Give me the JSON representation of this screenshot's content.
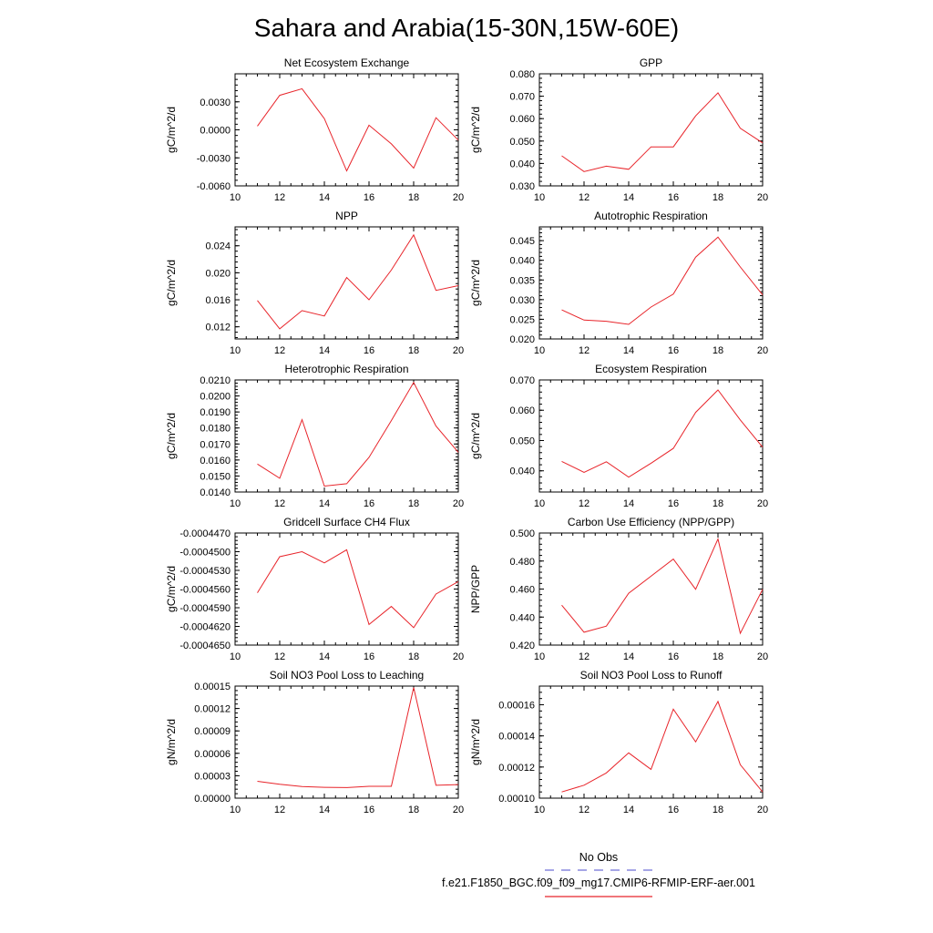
{
  "figure": {
    "title": "Sahara and Arabia(15-30N,15W-60E)",
    "legend": {
      "obs_label": "No Obs",
      "obs_color": "#6f6fd8",
      "case_label": "f.e21.F1850_BGC.f09_f09_mg17.CMIP6-RFMIP-ERF-aer.001",
      "case_color": "#e8242a"
    }
  },
  "chart_data": [
    {
      "type": "line",
      "title": "Net Ecosystem Exchange",
      "ylabel": "gC/m^2/d",
      "xlim": [
        10,
        20
      ],
      "ylim": [
        -0.006,
        0.006
      ],
      "x_ticks": [
        "10",
        "12",
        "14",
        "16",
        "18",
        "20"
      ],
      "y_ticks": [
        {
          "v": -0.006,
          "l": "-0.0060"
        },
        {
          "v": -0.003,
          "l": "-0.0030"
        },
        {
          "v": 0,
          "l": "0.0000"
        },
        {
          "v": 0.003,
          "l": "0.0030"
        }
      ],
      "y_minor": 0.0006,
      "series": [
        {
          "x": [
            11,
            12,
            13,
            14,
            15,
            16,
            17,
            18,
            19,
            20
          ],
          "values": [
            0.0004,
            0.0037,
            0.0044,
            0.0012,
            -0.0044,
            0.0005,
            -0.0015,
            -0.0041,
            0.0013,
            -0.0011
          ]
        }
      ]
    },
    {
      "type": "line",
      "title": "GPP",
      "ylabel": "gC/m^2/d",
      "xlim": [
        10,
        20
      ],
      "ylim": [
        0.03,
        0.08
      ],
      "x_ticks": [
        "10",
        "12",
        "14",
        "16",
        "18",
        "20"
      ],
      "y_ticks": [
        {
          "v": 0.03,
          "l": "0.030"
        },
        {
          "v": 0.04,
          "l": "0.040"
        },
        {
          "v": 0.05,
          "l": "0.050"
        },
        {
          "v": 0.06,
          "l": "0.060"
        },
        {
          "v": 0.07,
          "l": "0.070"
        },
        {
          "v": 0.08,
          "l": "0.080"
        }
      ],
      "y_minor": 0.002,
      "series": [
        {
          "x": [
            11,
            12,
            13,
            14,
            15,
            16,
            17,
            18,
            19,
            20
          ],
          "values": [
            0.0434,
            0.0364,
            0.0388,
            0.0374,
            0.0474,
            0.0474,
            0.0612,
            0.0715,
            0.0557,
            0.0492
          ]
        }
      ]
    },
    {
      "type": "line",
      "title": "NPP",
      "ylabel": "gC/m^2/d",
      "xlim": [
        10,
        20
      ],
      "ylim": [
        0.0102,
        0.0268
      ],
      "x_ticks": [
        "10",
        "12",
        "14",
        "16",
        "18",
        "20"
      ],
      "y_ticks": [
        {
          "v": 0.012,
          "l": "0.012"
        },
        {
          "v": 0.016,
          "l": "0.016"
        },
        {
          "v": 0.02,
          "l": "0.020"
        },
        {
          "v": 0.024,
          "l": "0.024"
        }
      ],
      "y_minor": 0.0008,
      "series": [
        {
          "x": [
            11,
            12,
            13,
            14,
            15,
            16,
            17,
            18,
            19,
            20
          ],
          "values": [
            0.0159,
            0.0117,
            0.0144,
            0.0136,
            0.0193,
            0.016,
            0.0204,
            0.0256,
            0.0174,
            0.0181
          ]
        }
      ]
    },
    {
      "type": "line",
      "title": "Autotrophic Respiration",
      "ylabel": "gC/m^2/d",
      "xlim": [
        10,
        20
      ],
      "ylim": [
        0.02,
        0.0485
      ],
      "x_ticks": [
        "10",
        "12",
        "14",
        "16",
        "18",
        "20"
      ],
      "y_ticks": [
        {
          "v": 0.02,
          "l": "0.020"
        },
        {
          "v": 0.025,
          "l": "0.025"
        },
        {
          "v": 0.03,
          "l": "0.030"
        },
        {
          "v": 0.035,
          "l": "0.035"
        },
        {
          "v": 0.04,
          "l": "0.040"
        },
        {
          "v": 0.045,
          "l": "0.045"
        }
      ],
      "y_minor": 0.001,
      "series": [
        {
          "x": [
            11,
            12,
            13,
            14,
            15,
            16,
            17,
            18,
            19,
            20
          ],
          "values": [
            0.0274,
            0.0248,
            0.0245,
            0.0237,
            0.0281,
            0.0314,
            0.0408,
            0.0459,
            0.0383,
            0.0312
          ]
        }
      ]
    },
    {
      "type": "line",
      "title": "Heterotrophic Respiration",
      "ylabel": "gC/m^2/d",
      "xlim": [
        10,
        20
      ],
      "ylim": [
        0.014,
        0.021
      ],
      "x_ticks": [
        "10",
        "12",
        "14",
        "16",
        "18",
        "20"
      ],
      "y_ticks": [
        {
          "v": 0.014,
          "l": "0.0140"
        },
        {
          "v": 0.015,
          "l": "0.0150"
        },
        {
          "v": 0.016,
          "l": "0.0160"
        },
        {
          "v": 0.017,
          "l": "0.0170"
        },
        {
          "v": 0.018,
          "l": "0.0180"
        },
        {
          "v": 0.019,
          "l": "0.0190"
        },
        {
          "v": 0.02,
          "l": "0.0200"
        },
        {
          "v": 0.021,
          "l": "0.0210"
        }
      ],
      "y_minor": 0.0002,
      "series": [
        {
          "x": [
            11,
            12,
            13,
            14,
            15,
            16,
            17,
            18,
            19,
            20
          ],
          "values": [
            0.01575,
            0.01486,
            0.01852,
            0.01437,
            0.01452,
            0.01616,
            0.01846,
            0.02084,
            0.01812,
            0.01648
          ]
        }
      ]
    },
    {
      "type": "line",
      "title": "Ecosystem Respiration",
      "ylabel": "gC/m^2/d",
      "xlim": [
        10,
        20
      ],
      "ylim": [
        0.033,
        0.07
      ],
      "x_ticks": [
        "10",
        "12",
        "14",
        "16",
        "18",
        "20"
      ],
      "y_ticks": [
        {
          "v": 0.04,
          "l": "0.040"
        },
        {
          "v": 0.05,
          "l": "0.050"
        },
        {
          "v": 0.06,
          "l": "0.060"
        },
        {
          "v": 0.07,
          "l": "0.070"
        }
      ],
      "y_minor": 0.002,
      "series": [
        {
          "x": [
            11,
            12,
            13,
            14,
            15,
            16,
            17,
            18,
            19,
            20
          ],
          "values": [
            0.0431,
            0.0395,
            0.043,
            0.0379,
            0.0425,
            0.0474,
            0.0593,
            0.0667,
            0.0568,
            0.0478
          ]
        }
      ]
    },
    {
      "type": "line",
      "title": "Gridcell Surface CH4 Flux",
      "ylabel": "gC/m^2/d",
      "xlim": [
        10,
        20
      ],
      "ylim": [
        -0.000465,
        -0.000447
      ],
      "x_ticks": [
        "10",
        "12",
        "14",
        "16",
        "18",
        "20"
      ],
      "y_ticks": [
        {
          "v": -0.000465,
          "l": "-0.0004650"
        },
        {
          "v": -0.000462,
          "l": "-0.0004620"
        },
        {
          "v": -0.000459,
          "l": "-0.0004590"
        },
        {
          "v": -0.000456,
          "l": "-0.0004560"
        },
        {
          "v": -0.000453,
          "l": "-0.0004530"
        },
        {
          "v": -0.00045,
          "l": "-0.0004500"
        },
        {
          "v": -0.000447,
          "l": "-0.0004470"
        }
      ],
      "y_minor": 6e-07,
      "series": [
        {
          "x": [
            11,
            12,
            13,
            14,
            15,
            16,
            17,
            18,
            19,
            20
          ],
          "values": [
            -0.0004566,
            -0.0004508,
            -0.00045,
            -0.0004518,
            -0.0004497,
            -0.0004617,
            -0.0004588,
            -0.0004622,
            -0.0004568,
            -0.0004548
          ]
        }
      ]
    },
    {
      "type": "line",
      "title": "Carbon Use Efficiency (NPP/GPP)",
      "ylabel": "NPP/GPP",
      "xlim": [
        10,
        20
      ],
      "ylim": [
        0.42,
        0.5
      ],
      "x_ticks": [
        "10",
        "12",
        "14",
        "16",
        "18",
        "20"
      ],
      "y_ticks": [
        {
          "v": 0.42,
          "l": "0.420"
        },
        {
          "v": 0.44,
          "l": "0.440"
        },
        {
          "v": 0.46,
          "l": "0.460"
        },
        {
          "v": 0.48,
          "l": "0.480"
        },
        {
          "v": 0.5,
          "l": "0.500"
        }
      ],
      "y_minor": 0.004,
      "series": [
        {
          "x": [
            11,
            12,
            13,
            14,
            15,
            16,
            17,
            18,
            19,
            20
          ],
          "values": [
            0.4485,
            0.4292,
            0.4335,
            0.457,
            0.4692,
            0.4814,
            0.4598,
            0.4957,
            0.4284,
            0.4598
          ]
        }
      ]
    },
    {
      "type": "line",
      "title": "Soil NO3 Pool Loss to Leaching",
      "ylabel": "gN/m^2/d",
      "xlim": [
        10,
        20
      ],
      "ylim": [
        0,
        0.00015
      ],
      "x_ticks": [
        "10",
        "12",
        "14",
        "16",
        "18",
        "20"
      ],
      "y_ticks": [
        {
          "v": 0,
          "l": "0.00000"
        },
        {
          "v": 3e-05,
          "l": "0.00003"
        },
        {
          "v": 6e-05,
          "l": "0.00006"
        },
        {
          "v": 9e-05,
          "l": "0.00009"
        },
        {
          "v": 0.00012,
          "l": "0.00012"
        },
        {
          "v": 0.00015,
          "l": "0.00015"
        }
      ],
      "y_minor": 6e-06,
      "series": [
        {
          "x": [
            11,
            12,
            13,
            14,
            15,
            16,
            17,
            18,
            19,
            20
          ],
          "values": [
            2.25e-05,
            1.85e-05,
            1.55e-05,
            1.45e-05,
            1.42e-05,
            1.58e-05,
            1.58e-05,
            0.000148,
            1.72e-05,
            1.82e-05
          ]
        }
      ]
    },
    {
      "type": "line",
      "title": "Soil NO3 Pool Loss to Runoff",
      "ylabel": "gN/m^2/d",
      "xlim": [
        10,
        20
      ],
      "ylim": [
        0.0001,
        0.000172
      ],
      "x_ticks": [
        "10",
        "12",
        "14",
        "16",
        "18",
        "20"
      ],
      "y_ticks": [
        {
          "v": 0.0001,
          "l": "0.00010"
        },
        {
          "v": 0.00012,
          "l": "0.00012"
        },
        {
          "v": 0.00014,
          "l": "0.00014"
        },
        {
          "v": 0.00016,
          "l": "0.00016"
        }
      ],
      "y_minor": 4e-06,
      "series": [
        {
          "x": [
            11,
            12,
            13,
            14,
            15,
            16,
            17,
            18,
            19,
            20
          ],
          "values": [
            0.000104,
            0.0001083,
            0.0001162,
            0.0001291,
            0.0001185,
            0.0001572,
            0.0001362,
            0.0001621,
            0.0001215,
            0.000104
          ]
        }
      ]
    }
  ]
}
